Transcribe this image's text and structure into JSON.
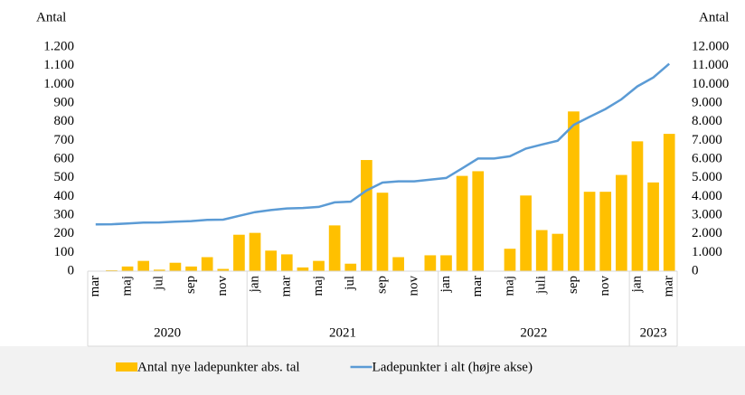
{
  "chart_data": {
    "type": "bar_line",
    "y_label": "Antal",
    "y2_label": "Antal",
    "categories": [
      "mar",
      null,
      "maj",
      null,
      "jul",
      null,
      "sep",
      null,
      "nov",
      null,
      "jan",
      null,
      "mar",
      null,
      "maj",
      null,
      "jul",
      null,
      "sep",
      null,
      "nov",
      null,
      "jan",
      null,
      "mar",
      null,
      "maj",
      null,
      "juli",
      null,
      "sep",
      null,
      "nov",
      null,
      "jan",
      null,
      "mar"
    ],
    "years": [
      "2020",
      "2020",
      "2020",
      "2020",
      "2020",
      "2020",
      "2020",
      "2020",
      "2020",
      "2020",
      "2021",
      "2021",
      "2021",
      "2021",
      "2021",
      "2021",
      "2021",
      "2021",
      "2021",
      "2021",
      "2021",
      "2021",
      "2022",
      "2022",
      "2022",
      "2022",
      "2022",
      "2022",
      "2022",
      "2022",
      "2022",
      "2022",
      "2022",
      "2022",
      "2023",
      "2023",
      "2023"
    ],
    "series": [
      {
        "name": "Antal nye ladepunkter abs. tal",
        "color": "#FFC000",
        "kind": "bar",
        "values": [
          2,
          5,
          25,
          55,
          8,
          45,
          25,
          75,
          12,
          195,
          205,
          110,
          90,
          20,
          55,
          245,
          40,
          595,
          420,
          75,
          0,
          85,
          85,
          510,
          535,
          0,
          120,
          405,
          220,
          200,
          855,
          425,
          425,
          515,
          695,
          475,
          735
        ]
      },
      {
        "name": "Ladepunkter i alt (højre akse)",
        "color": "#5B9BD5",
        "kind": "line",
        "axis": "y2",
        "values": [
          2500,
          2510,
          2550,
          2600,
          2610,
          2650,
          2680,
          2750,
          2760,
          2960,
          3160,
          3270,
          3360,
          3380,
          3440,
          3680,
          3720,
          4320,
          4740,
          4810,
          4810,
          4900,
          4990,
          5500,
          6030,
          6030,
          6150,
          6560,
          6780,
          6980,
          7830,
          8260,
          8680,
          9200,
          9890,
          10370,
          11100
        ]
      }
    ],
    "ylim": [
      0,
      1200
    ],
    "yticks": [
      0,
      100,
      200,
      300,
      400,
      500,
      600,
      700,
      800,
      900,
      {
        "value": 1000,
        "label": "1.000"
      },
      {
        "value": 1100,
        "label": "1.100"
      },
      {
        "value": 1200,
        "label": "1.200"
      }
    ],
    "y2lim": [
      0,
      12000
    ],
    "y2ticks": [
      0,
      {
        "value": 1000,
        "label": "1.000"
      },
      {
        "value": 2000,
        "label": "2.000"
      },
      {
        "value": 3000,
        "label": "3.000"
      },
      {
        "value": 4000,
        "label": "4.000"
      },
      {
        "value": 5000,
        "label": "5.000"
      },
      {
        "value": 6000,
        "label": "6.000"
      },
      {
        "value": 7000,
        "label": "7.000"
      },
      {
        "value": 8000,
        "label": "8.000"
      },
      {
        "value": 9000,
        "label": "9.000"
      },
      {
        "value": 10000,
        "label": "10.000"
      },
      {
        "value": 11000,
        "label": "11.000"
      },
      {
        "value": 12000,
        "label": "12.000"
      }
    ],
    "grid": false,
    "legend": "bottom"
  }
}
